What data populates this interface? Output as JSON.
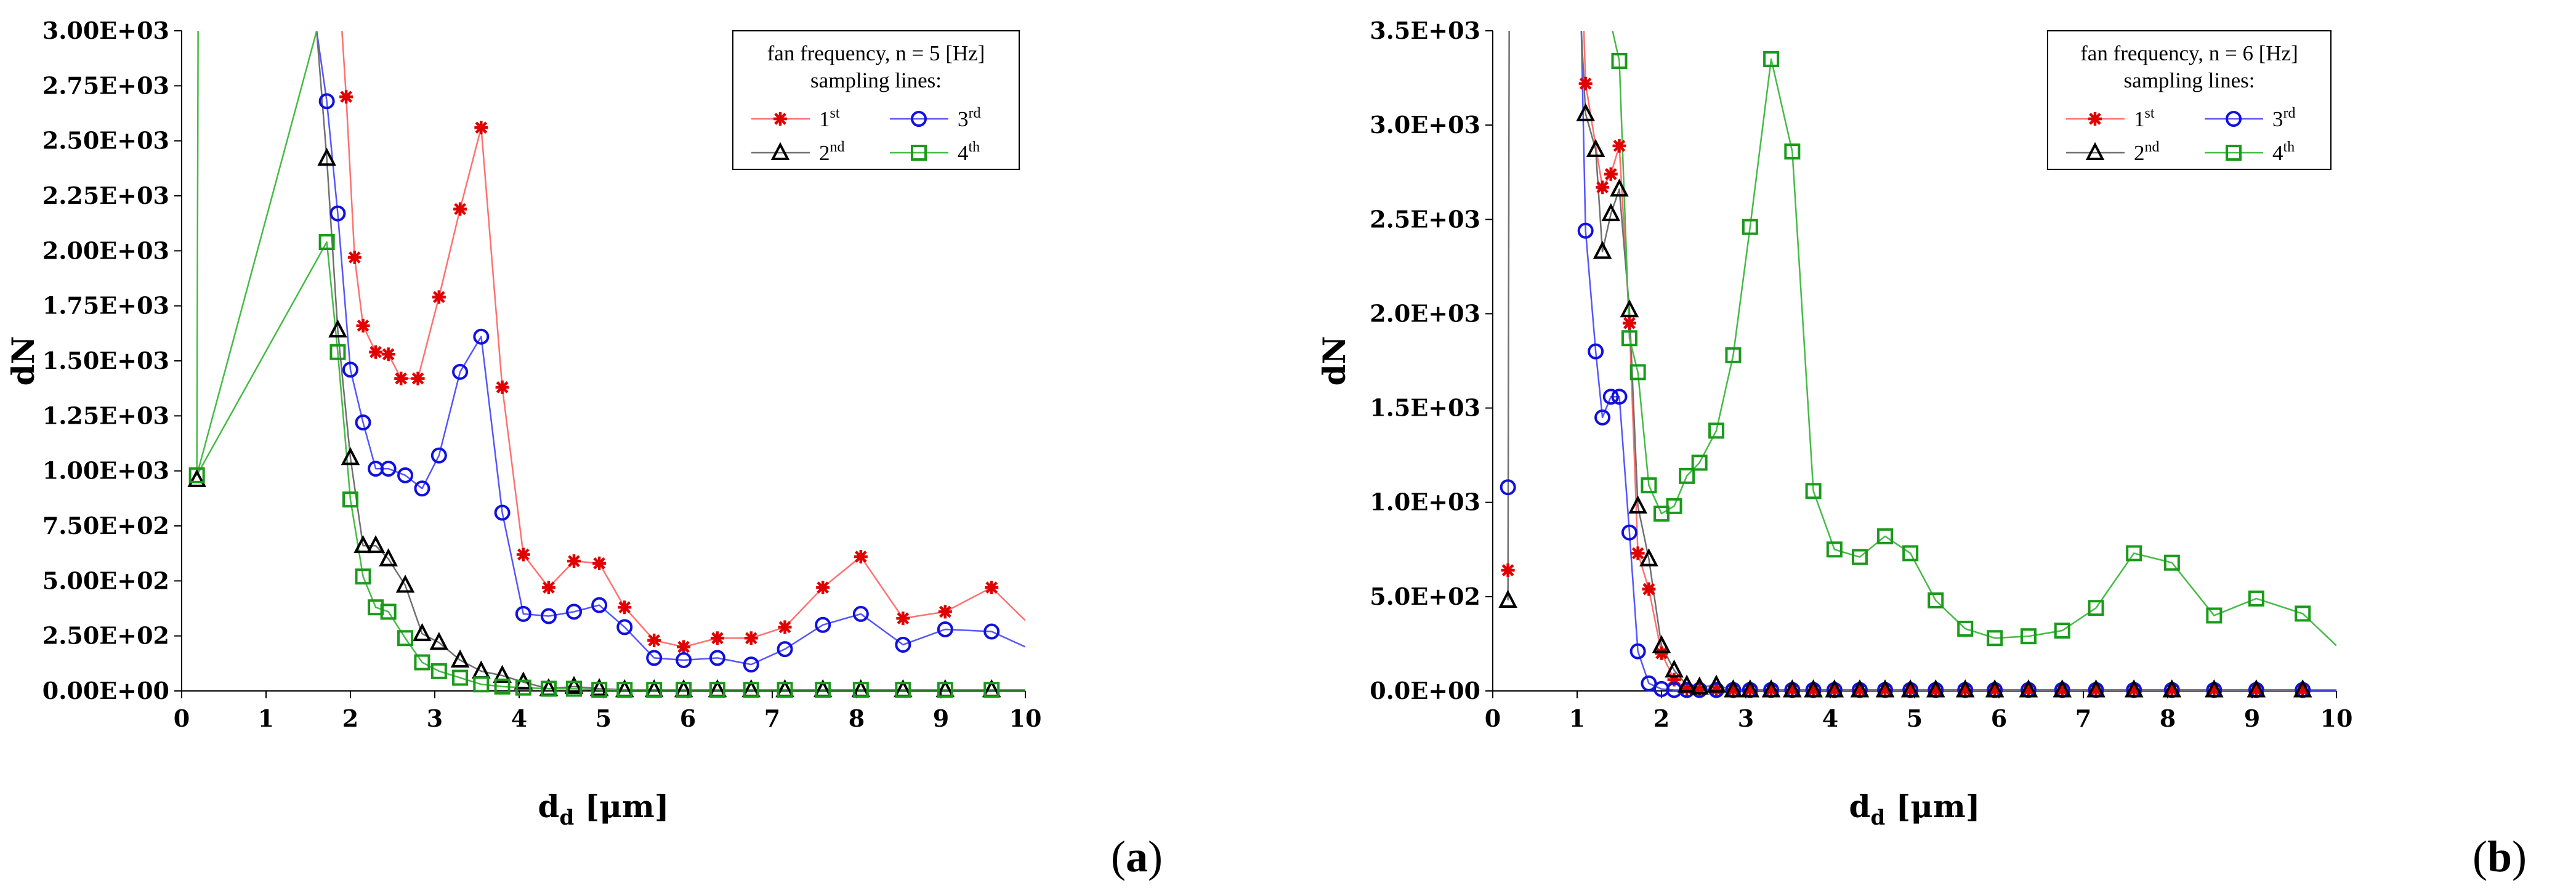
{
  "chart_data": [
    {
      "type": "line",
      "panel_label": "(a)",
      "panel_letter": "a",
      "xlabel": "d",
      "xlabel_sub": "d",
      "xlabel_unit": " [μm]",
      "ylabel": "dN",
      "xlim": [
        0,
        10
      ],
      "ylim": [
        0,
        3000
      ],
      "xticks": [
        0,
        1,
        2,
        3,
        4,
        5,
        6,
        7,
        8,
        9,
        10
      ],
      "xtick_labels": [
        "0",
        "1",
        "2",
        "3",
        "4",
        "5",
        "6",
        "7",
        "8",
        "9",
        "10"
      ],
      "yticks": [
        0,
        250,
        500,
        750,
        1000,
        1250,
        1500,
        1750,
        2000,
        2250,
        2500,
        2750,
        3000
      ],
      "ytick_labels": [
        "0.00E+00",
        "2.50E+02",
        "5.00E+02",
        "7.50E+02",
        "1.00E+03",
        "1.25E+03",
        "1.50E+03",
        "1.75E+03",
        "2.00E+03",
        "2.25E+03",
        "2.50E+03",
        "2.75E+03",
        "3.00E+03"
      ],
      "legend": {
        "title_line1": "fan frequency, n = 5 [Hz]",
        "title_line2": "sampling lines:",
        "placement": "top-right",
        "entries": [
          {
            "base": "1",
            "sup": "st"
          },
          {
            "base": "3",
            "sup": "rd"
          },
          {
            "base": "2",
            "sup": "nd"
          },
          {
            "base": "4",
            "sup": "th"
          }
        ]
      },
      "series": [
        {
          "name": "1st",
          "marker": "asterisk",
          "line_color": "#ff7070",
          "marker_color": "#e00000",
          "x": [
            1.95,
            2.05,
            2.15,
            2.3,
            2.45,
            2.6,
            2.8,
            3.05,
            3.3,
            3.55,
            3.8,
            4.05,
            4.35,
            4.65,
            4.95,
            5.25,
            5.6,
            5.95,
            6.35,
            6.75,
            7.15,
            7.6,
            8.05,
            8.55,
            9.05,
            9.6,
            10.0
          ],
          "y": [
            2700,
            1970,
            1660,
            1540,
            1530,
            1420,
            1420,
            1790,
            2190,
            2560,
            1380,
            620,
            470,
            590,
            580,
            380,
            230,
            200,
            240,
            240,
            290,
            470,
            610,
            330,
            360,
            470,
            320
          ],
          "markers": [
            1,
            1,
            1,
            1,
            1,
            1,
            1,
            1,
            1,
            1,
            1,
            1,
            1,
            1,
            1,
            1,
            1,
            1,
            1,
            1,
            1,
            1,
            1,
            1,
            1,
            1,
            0
          ],
          "curve_start": {
            "x": 1.9,
            "y": 3000
          }
        },
        {
          "name": "3rd",
          "marker": "circle",
          "line_color": "#5555ff",
          "marker_color": "#1010e0",
          "x": [
            1.72,
            1.85,
            2.0,
            2.15,
            2.3,
            2.45,
            2.65,
            2.85,
            3.05,
            3.3,
            3.55,
            3.8,
            4.05,
            4.35,
            4.65,
            4.95,
            5.25,
            5.6,
            5.95,
            6.35,
            6.75,
            7.15,
            7.6,
            8.05,
            8.55,
            9.05,
            9.6,
            10.0
          ],
          "y": [
            2680,
            2170,
            1460,
            1220,
            1010,
            1010,
            980,
            920,
            1070,
            1450,
            1610,
            810,
            350,
            340,
            360,
            390,
            290,
            150,
            140,
            150,
            120,
            190,
            300,
            350,
            210,
            280,
            270,
            200
          ],
          "markers": [
            1,
            1,
            1,
            1,
            1,
            1,
            1,
            1,
            1,
            1,
            1,
            1,
            1,
            1,
            1,
            1,
            1,
            1,
            1,
            1,
            1,
            1,
            1,
            1,
            1,
            1,
            1,
            0
          ],
          "curve_start": {
            "x": 1.6,
            "y": 3000
          }
        },
        {
          "name": "2nd",
          "marker": "triangle",
          "line_color": "#707070",
          "marker_color": "#000000",
          "x": [
            0.18,
            1.72,
            1.85,
            2.0,
            2.15,
            2.3,
            2.45,
            2.65,
            2.85,
            3.05,
            3.3,
            3.55,
            3.8,
            4.05,
            4.35,
            4.65,
            4.95,
            5.25,
            5.6,
            5.95,
            6.35,
            6.75,
            7.15,
            7.6,
            8.05,
            8.55,
            9.05,
            9.6
          ],
          "y": [
            960,
            2420,
            1640,
            1060,
            660,
            660,
            600,
            480,
            260,
            220,
            140,
            90,
            70,
            40,
            10,
            20,
            10,
            5,
            5,
            5,
            5,
            5,
            5,
            5,
            5,
            5,
            5,
            5
          ],
          "markers": [
            1,
            1,
            1,
            1,
            1,
            1,
            1,
            1,
            1,
            1,
            1,
            1,
            1,
            1,
            1,
            1,
            1,
            1,
            1,
            1,
            1,
            1,
            1,
            1,
            1,
            1,
            1,
            1
          ],
          "curve_start": {
            "x": 1.6,
            "y": 3000
          },
          "gap_after_first": true
        },
        {
          "name": "4th",
          "marker": "square",
          "line_color": "#44bb44",
          "marker_color": "#1a9a1a",
          "x": [
            0.18,
            1.72,
            1.85,
            2.0,
            2.15,
            2.3,
            2.45,
            2.65,
            2.85,
            3.05,
            3.3,
            3.55,
            3.8,
            4.05,
            4.35,
            4.65,
            4.95,
            5.25,
            5.6,
            5.95,
            6.35,
            6.75,
            7.15,
            7.6,
            8.05,
            8.55,
            9.05,
            9.6,
            10.0
          ],
          "y": [
            980,
            2040,
            1540,
            870,
            520,
            380,
            360,
            240,
            130,
            90,
            60,
            30,
            20,
            15,
            10,
            10,
            5,
            5,
            5,
            5,
            5,
            5,
            5,
            5,
            5,
            5,
            5,
            5,
            5
          ],
          "markers": [
            1,
            1,
            1,
            1,
            1,
            1,
            1,
            1,
            1,
            1,
            1,
            1,
            1,
            1,
            1,
            1,
            1,
            1,
            1,
            1,
            1,
            1,
            1,
            1,
            1,
            1,
            1,
            1,
            0
          ],
          "curve_start": {
            "x": 1.6,
            "y": 3000
          },
          "spike": {
            "x": 0.18,
            "y_top": 3000
          }
        }
      ]
    },
    {
      "type": "line",
      "panel_label": "(b)",
      "panel_letter": "b",
      "xlabel": "d",
      "xlabel_sub": "d",
      "xlabel_unit": " [μm]",
      "ylabel": "dN",
      "xlim": [
        0,
        10
      ],
      "ylim": [
        0,
        3500
      ],
      "xticks": [
        0,
        1,
        2,
        3,
        4,
        5,
        6,
        7,
        8,
        9,
        10
      ],
      "xtick_labels": [
        "0",
        "1",
        "2",
        "3",
        "4",
        "5",
        "6",
        "7",
        "8",
        "9",
        "10"
      ],
      "yticks": [
        0,
        500,
        1000,
        1500,
        2000,
        2500,
        3000,
        3500
      ],
      "ytick_labels": [
        "0.0E+00",
        "5.0E+02",
        "1.0E+03",
        "1.5E+03",
        "2.0E+03",
        "2.5E+03",
        "3.0E+03",
        "3.5E+03"
      ],
      "legend": {
        "title_line1": "fan frequency, n = 6 [Hz]",
        "title_line2": "sampling lines:",
        "placement": "top-right",
        "entries": [
          {
            "base": "1",
            "sup": "st"
          },
          {
            "base": "3",
            "sup": "rd"
          },
          {
            "base": "2",
            "sup": "nd"
          },
          {
            "base": "4",
            "sup": "th"
          }
        ]
      },
      "series": [
        {
          "name": "1st",
          "marker": "asterisk",
          "line_color": "#ff7070",
          "marker_color": "#e00000",
          "x": [
            0.18,
            1.1,
            1.3,
            1.4,
            1.5,
            1.62,
            1.72,
            1.85,
            2.0,
            2.15,
            2.3,
            2.45,
            2.65,
            2.85,
            3.05,
            3.3,
            3.55,
            3.8,
            4.05,
            4.35,
            4.65,
            4.95,
            5.25,
            5.6,
            5.95,
            6.35,
            6.75,
            7.15,
            7.6,
            8.05,
            8.55,
            9.05,
            9.6
          ],
          "y": [
            640,
            3220,
            2670,
            2740,
            2890,
            1950,
            730,
            540,
            200,
            60,
            10,
            5,
            5,
            5,
            5,
            5,
            5,
            5,
            5,
            5,
            5,
            5,
            5,
            5,
            5,
            5,
            5,
            5,
            5,
            5,
            5,
            5,
            5
          ],
          "markers": [
            1,
            1,
            1,
            1,
            1,
            1,
            1,
            1,
            1,
            1,
            1,
            1,
            1,
            1,
            1,
            1,
            1,
            1,
            1,
            1,
            1,
            1,
            1,
            1,
            1,
            1,
            1,
            1,
            1,
            1,
            1,
            1,
            1
          ],
          "curve_start": {
            "x": 1.08,
            "y": 3500
          },
          "gap_after_first": true
        },
        {
          "name": "3rd",
          "marker": "circle",
          "line_color": "#5555ff",
          "marker_color": "#1010e0",
          "x": [
            0.18,
            1.1,
            1.22,
            1.3,
            1.4,
            1.5,
            1.62,
            1.72,
            1.85,
            2.0,
            2.15,
            2.3,
            2.45,
            2.65,
            2.85,
            3.05,
            3.3,
            3.55,
            3.8,
            4.05,
            4.35,
            4.65,
            4.95,
            5.25,
            5.6,
            5.95,
            6.35,
            6.75,
            7.15,
            7.6,
            8.05,
            8.55,
            9.05,
            9.6,
            10.0
          ],
          "y": [
            1080,
            2440,
            1800,
            1450,
            1560,
            1560,
            840,
            210,
            40,
            10,
            5,
            5,
            5,
            5,
            5,
            5,
            5,
            5,
            5,
            5,
            5,
            5,
            5,
            5,
            5,
            5,
            5,
            5,
            5,
            5,
            5,
            5,
            5,
            5,
            5
          ],
          "markers": [
            1,
            1,
            1,
            1,
            1,
            1,
            1,
            1,
            1,
            1,
            1,
            1,
            1,
            1,
            1,
            1,
            1,
            1,
            1,
            1,
            1,
            1,
            1,
            1,
            1,
            1,
            1,
            1,
            1,
            1,
            1,
            1,
            1,
            1,
            0
          ],
          "curve_start": {
            "x": 1.05,
            "y": 3500
          },
          "gap_after_first": true
        },
        {
          "name": "2nd",
          "marker": "triangle",
          "line_color": "#707070",
          "marker_color": "#000000",
          "x": [
            0.18,
            1.1,
            1.22,
            1.3,
            1.4,
            1.5,
            1.62,
            1.72,
            1.85,
            2.0,
            2.15,
            2.3,
            2.45,
            2.65,
            2.85,
            3.05,
            3.3,
            3.55,
            3.8,
            4.05,
            4.35,
            4.65,
            4.95,
            5.25,
            5.6,
            5.95,
            6.35,
            6.75,
            7.15,
            7.6,
            8.05,
            8.55,
            9.05,
            9.6
          ],
          "y": [
            480,
            3060,
            2870,
            2330,
            2530,
            2660,
            2020,
            980,
            700,
            240,
            110,
            30,
            20,
            30,
            5,
            5,
            5,
            5,
            5,
            5,
            5,
            5,
            5,
            5,
            5,
            5,
            5,
            5,
            5,
            5,
            5,
            5,
            5,
            5
          ],
          "markers": [
            1,
            1,
            1,
            1,
            1,
            1,
            1,
            1,
            1,
            1,
            1,
            1,
            1,
            1,
            1,
            1,
            1,
            1,
            1,
            1,
            1,
            1,
            1,
            1,
            1,
            1,
            1,
            1,
            1,
            1,
            1,
            1,
            1,
            1
          ],
          "curve_start": {
            "x": 1.05,
            "y": 3500
          },
          "gap_after_first": true,
          "spike": {
            "x": 0.18,
            "y_top": 3500
          }
        },
        {
          "name": "4th",
          "marker": "square",
          "line_color": "#44bb44",
          "marker_color": "#1a9a1a",
          "x": [
            1.5,
            1.62,
            1.72,
            1.85,
            2.0,
            2.15,
            2.3,
            2.45,
            2.65,
            2.85,
            3.05,
            3.3,
            3.55,
            3.8,
            4.05,
            4.35,
            4.65,
            4.95,
            5.25,
            5.6,
            5.95,
            6.35,
            6.75,
            7.15,
            7.6,
            8.05,
            8.55,
            9.05,
            9.6,
            10.0
          ],
          "y": [
            3340,
            1870,
            1690,
            1090,
            940,
            980,
            1140,
            1210,
            1380,
            1780,
            2460,
            3350,
            2860,
            1060,
            750,
            710,
            820,
            730,
            480,
            330,
            280,
            290,
            320,
            440,
            730,
            680,
            400,
            490,
            410,
            240
          ],
          "markers": [
            1,
            1,
            1,
            1,
            1,
            1,
            1,
            1,
            1,
            1,
            1,
            1,
            1,
            1,
            1,
            1,
            1,
            1,
            1,
            1,
            1,
            1,
            1,
            1,
            1,
            1,
            1,
            1,
            1,
            0
          ],
          "curve_start": {
            "x": 1.42,
            "y": 3500
          }
        }
      ]
    }
  ]
}
